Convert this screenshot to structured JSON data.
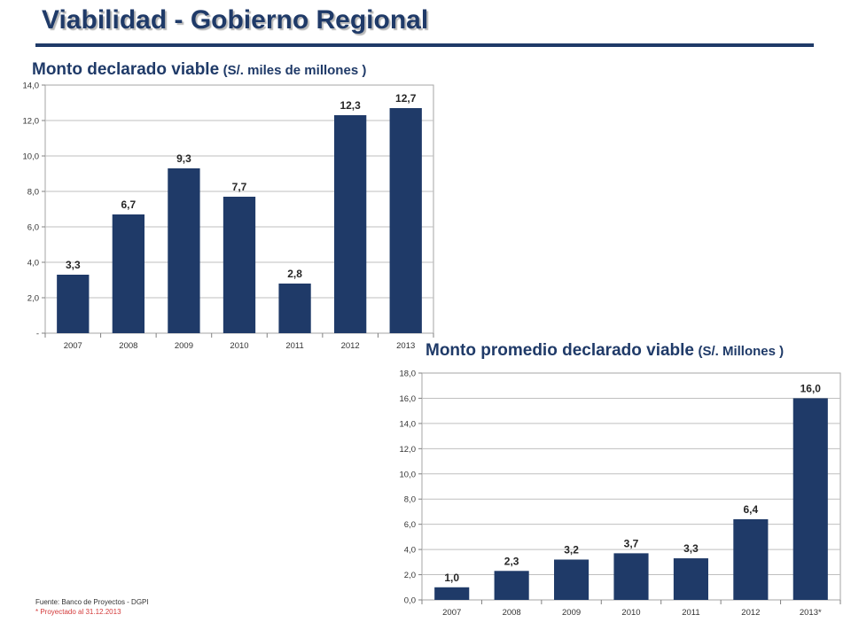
{
  "slide": {
    "title": "Viabilidad - Gobierno Regional"
  },
  "footnotes": {
    "source": "Fuente: Banco de Proyectos - DGPI",
    "projection": "* Proyectado al 31.12.2013"
  },
  "colors": {
    "bar": "#1f3a68",
    "title": "#1f3a68",
    "footnote_highlight": "#d33a3a"
  },
  "chart_data": [
    {
      "type": "bar",
      "title": "Monto declarado viable",
      "unit_label": "(S/. miles de millones )",
      "categories": [
        "2007",
        "2008",
        "2009",
        "2010",
        "2011",
        "2012",
        "2013"
      ],
      "values": [
        3.3,
        6.7,
        9.3,
        7.7,
        2.8,
        12.3,
        12.7
      ],
      "value_labels": [
        "3,3",
        "6,7",
        "9,3",
        "7,7",
        "2,8",
        "12,3",
        "12,7"
      ],
      "yticks": [
        "-",
        "2,0",
        "4,0",
        "6,0",
        "8,0",
        "10,0",
        "12,0",
        "14,0"
      ],
      "ylim": [
        0,
        14
      ],
      "grid": true,
      "legend": "none"
    },
    {
      "type": "bar",
      "title": "Monto promedio declarado viable",
      "unit_label": "(S/. Millones )",
      "categories": [
        "2007",
        "2008",
        "2009",
        "2010",
        "2011",
        "2012",
        "2013*"
      ],
      "values": [
        1.0,
        2.3,
        3.2,
        3.7,
        3.3,
        6.4,
        16.0
      ],
      "value_labels": [
        "1,0",
        "2,3",
        "3,2",
        "3,7",
        "3,3",
        "6,4",
        "16,0"
      ],
      "yticks": [
        "0,0",
        "2,0",
        "4,0",
        "6,0",
        "8,0",
        "10,0",
        "12,0",
        "14,0",
        "16,0",
        "18,0"
      ],
      "ylim": [
        0,
        18
      ],
      "grid": true,
      "legend": "none"
    }
  ]
}
